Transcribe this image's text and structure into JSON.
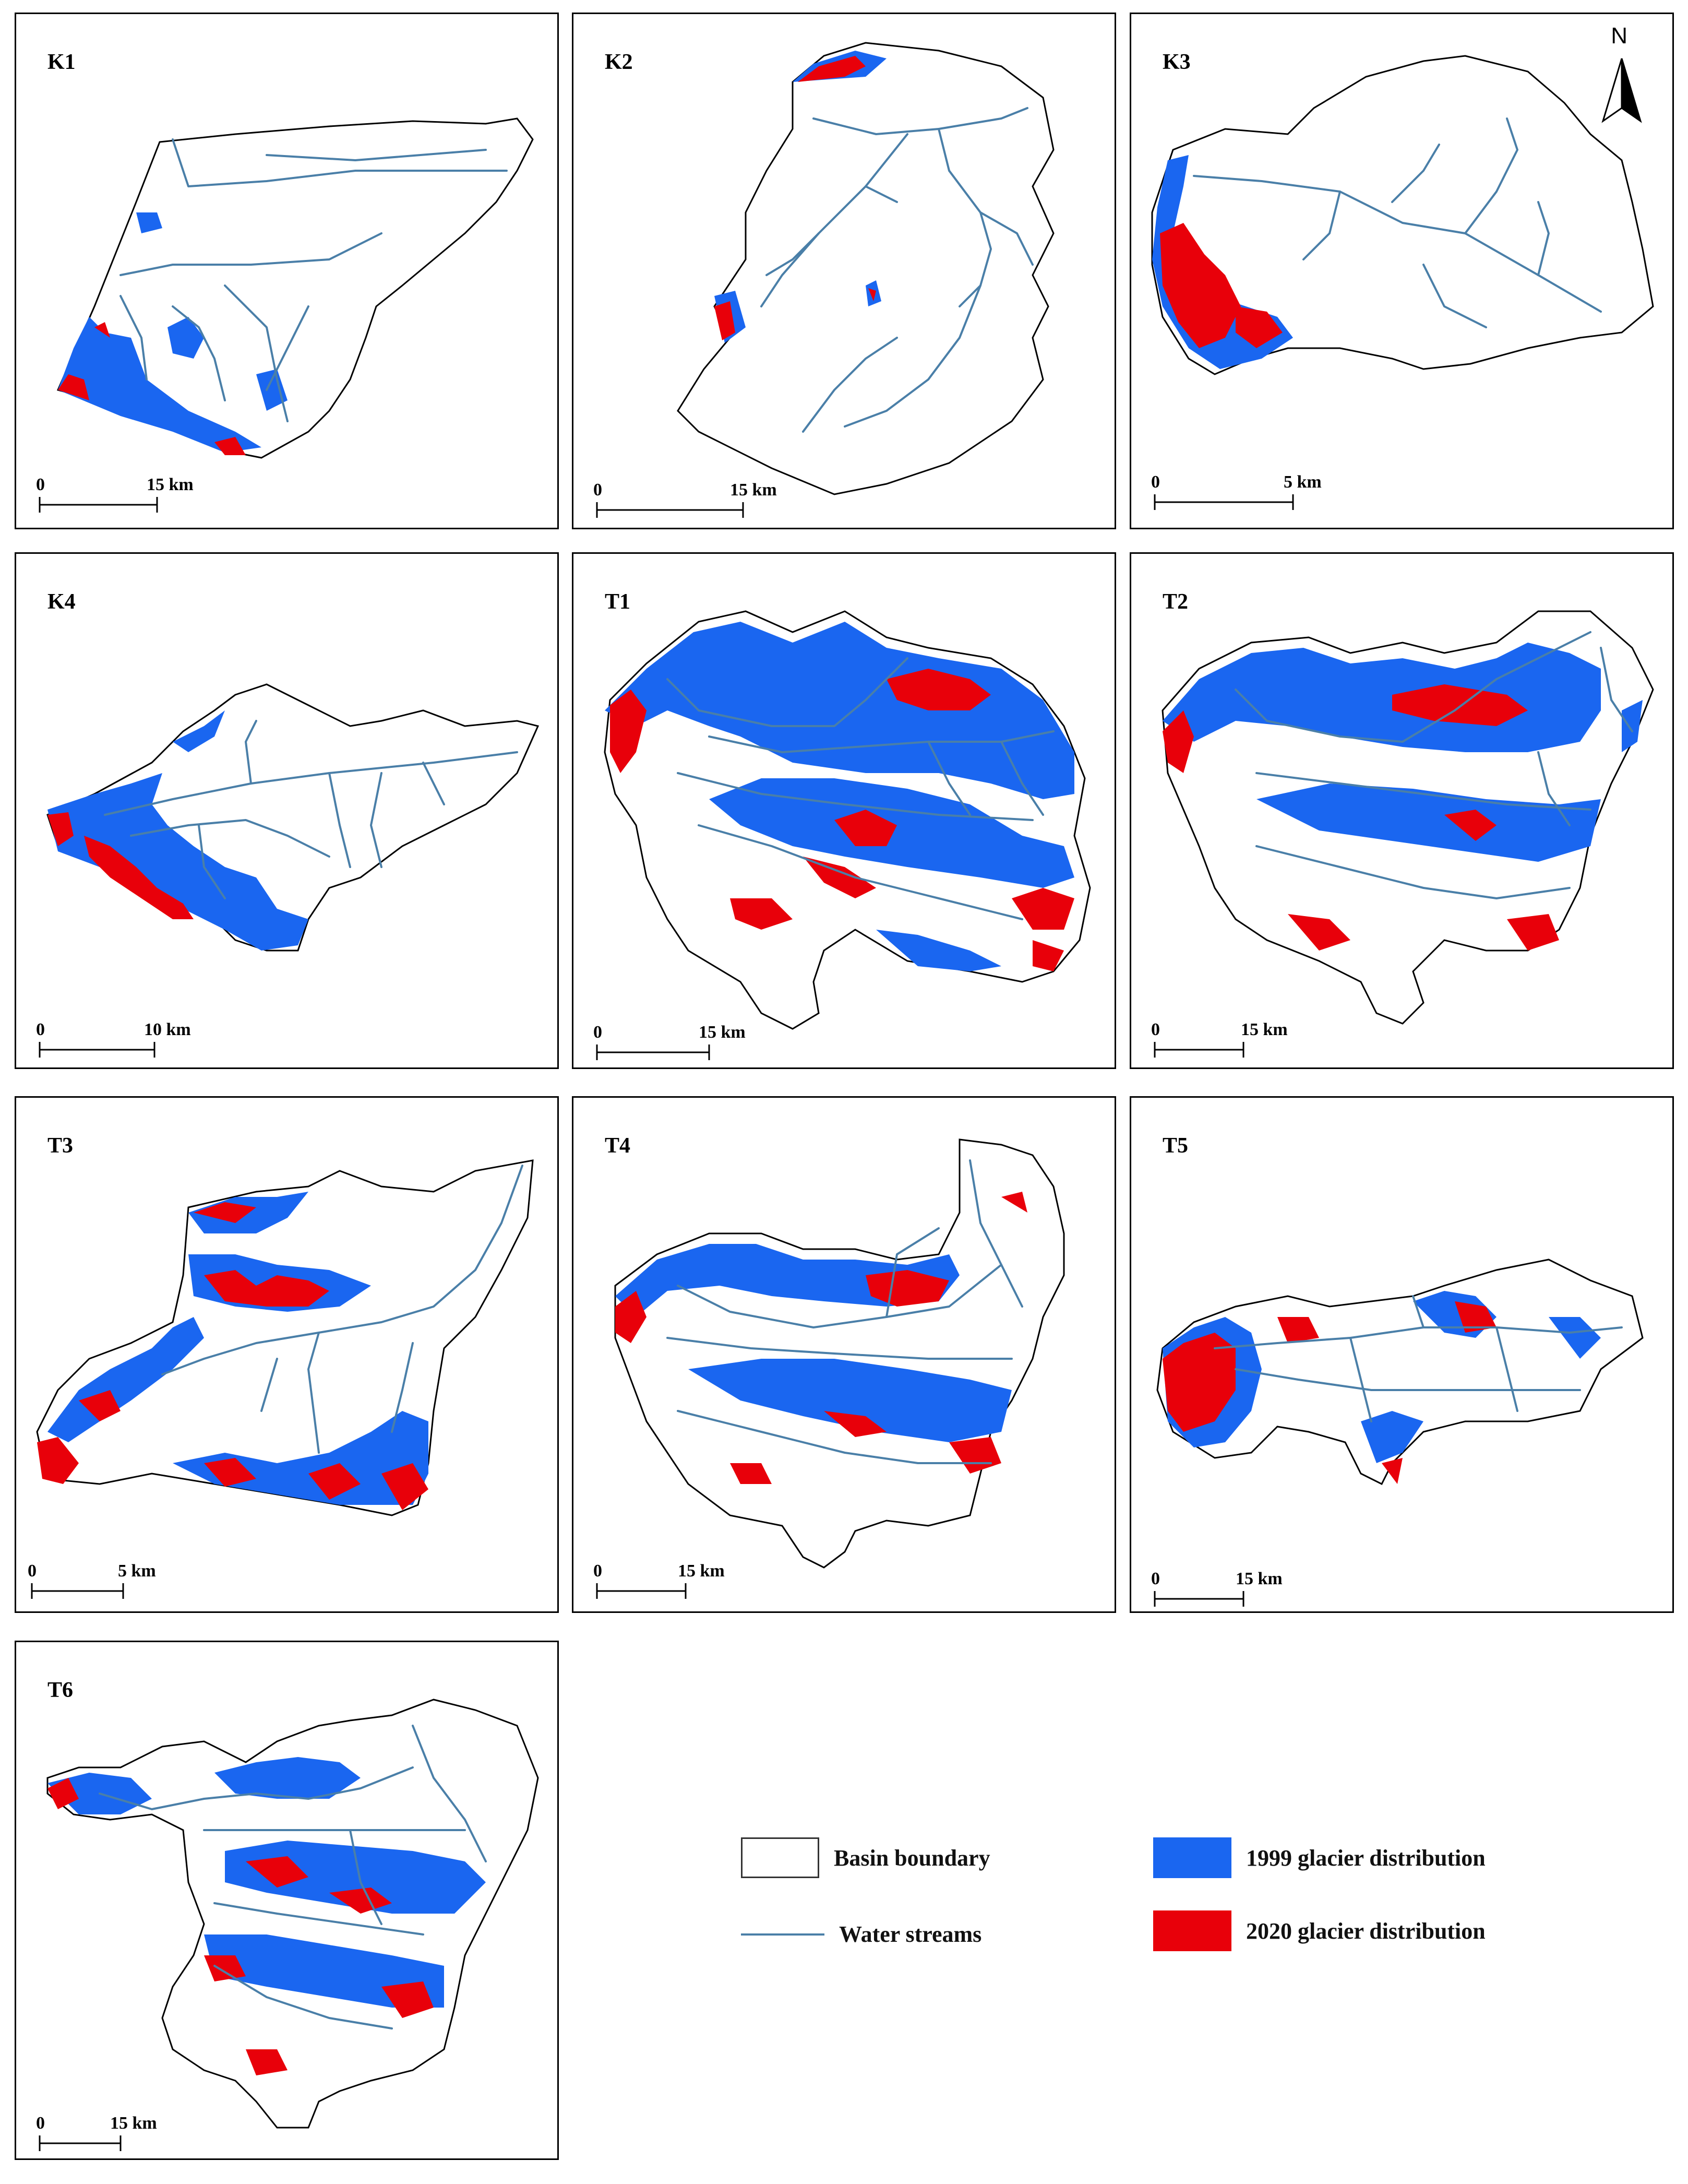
{
  "figure": {
    "north_label": "N",
    "colors": {
      "glacier_1999": "#1a66f0",
      "glacier_2020": "#e8000a",
      "stream": "#4a7fa8",
      "boundary": "#000000"
    }
  },
  "panels": [
    {
      "id": "K1",
      "title": "K1",
      "scale_zero": "0",
      "scale_label": "15 km"
    },
    {
      "id": "K2",
      "title": "K2",
      "scale_zero": "0",
      "scale_label": "15 km"
    },
    {
      "id": "K3",
      "title": "K3",
      "scale_zero": "0",
      "scale_label": "5 km"
    },
    {
      "id": "K4",
      "title": "K4",
      "scale_zero": "0",
      "scale_label": "10 km"
    },
    {
      "id": "T1",
      "title": "T1",
      "scale_zero": "0",
      "scale_label": "15 km"
    },
    {
      "id": "T2",
      "title": "T2",
      "scale_zero": "0",
      "scale_label": "15 km"
    },
    {
      "id": "T3",
      "title": "T3",
      "scale_zero": "0",
      "scale_label": "5 km"
    },
    {
      "id": "T4",
      "title": "T4",
      "scale_zero": "0",
      "scale_label": "15 km"
    },
    {
      "id": "T5",
      "title": "T5",
      "scale_zero": "0",
      "scale_label": "15 km"
    },
    {
      "id": "T6",
      "title": "T6",
      "scale_zero": "0",
      "scale_label": "15 km"
    }
  ],
  "legend": {
    "basin_boundary": "Basin boundary",
    "water_streams": "Water streams",
    "glacier_1999": "1999 glacier distribution",
    "glacier_2020": "2020 glacier distribution"
  }
}
